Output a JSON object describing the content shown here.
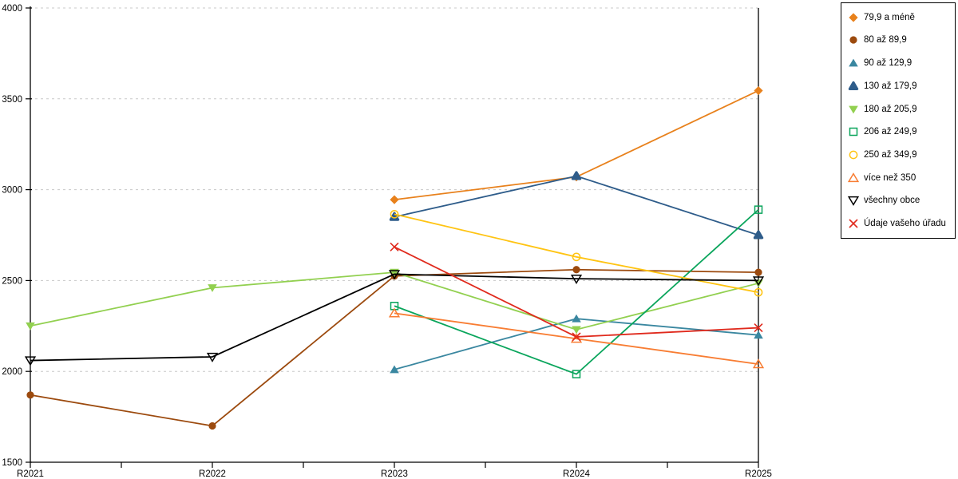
{
  "chart_data": {
    "type": "line",
    "title": "",
    "xlabel": "",
    "ylabel": "",
    "x_categories": [
      "R2021",
      "R2022",
      "R2023",
      "R2024",
      "R2025"
    ],
    "y_ticks": [
      4000,
      3500,
      3000,
      2500,
      2000,
      1500
    ],
    "ylim": [
      1500,
      4000
    ],
    "grid": "horizontal-dashed",
    "grid_color": "#c8c8c8",
    "axis_color": "#000000",
    "legend_position": "top-right",
    "series": [
      {
        "name": "79,9 a méně",
        "color": "#e8811c",
        "marker": "diamond",
        "marker_style": "filled",
        "values": [
          null,
          null,
          2945,
          3070,
          3545
        ]
      },
      {
        "name": "80 až 89,9",
        "color": "#9c4a0e",
        "marker": "circle",
        "marker_style": "filled",
        "values": [
          1870,
          1700,
          2525,
          2560,
          2545
        ]
      },
      {
        "name": "90 až 129,9",
        "color": "#3a87a0",
        "marker": "triangle-up",
        "marker_style": "filled",
        "values": [
          null,
          null,
          2010,
          2290,
          2200
        ]
      },
      {
        "name": "130 až 179,9",
        "color": "#2e5c8a",
        "marker": "triangle-up-rounded",
        "marker_style": "filled",
        "values": [
          null,
          null,
          2850,
          3075,
          2750
        ]
      },
      {
        "name": "180 až 205,9",
        "color": "#92d050",
        "marker": "triangle-down",
        "marker_style": "filled",
        "values": [
          2250,
          2460,
          2545,
          2230,
          2485
        ]
      },
      {
        "name": "206 až 249,9",
        "color": "#0aa55c",
        "marker": "square",
        "marker_style": "open",
        "values": [
          null,
          null,
          2360,
          1985,
          2890
        ]
      },
      {
        "name": "250 až 349,9",
        "color": "#ffc413",
        "marker": "circle",
        "marker_style": "open",
        "values": [
          null,
          null,
          2865,
          2630,
          2435
        ]
      },
      {
        "name": "více než 350",
        "color": "#f87d33",
        "marker": "triangle-up",
        "marker_style": "open",
        "values": [
          null,
          null,
          2320,
          2180,
          2040
        ]
      },
      {
        "name": "všechny obce",
        "color": "#000000",
        "marker": "triangle-down",
        "marker_style": "open",
        "values": [
          2060,
          2080,
          2535,
          2510,
          2500
        ]
      },
      {
        "name": "Údaje vašeho úřadu",
        "color": "#e02a1d",
        "marker": "x",
        "marker_style": "open",
        "values": [
          null,
          null,
          2685,
          2190,
          2240
        ]
      }
    ]
  }
}
